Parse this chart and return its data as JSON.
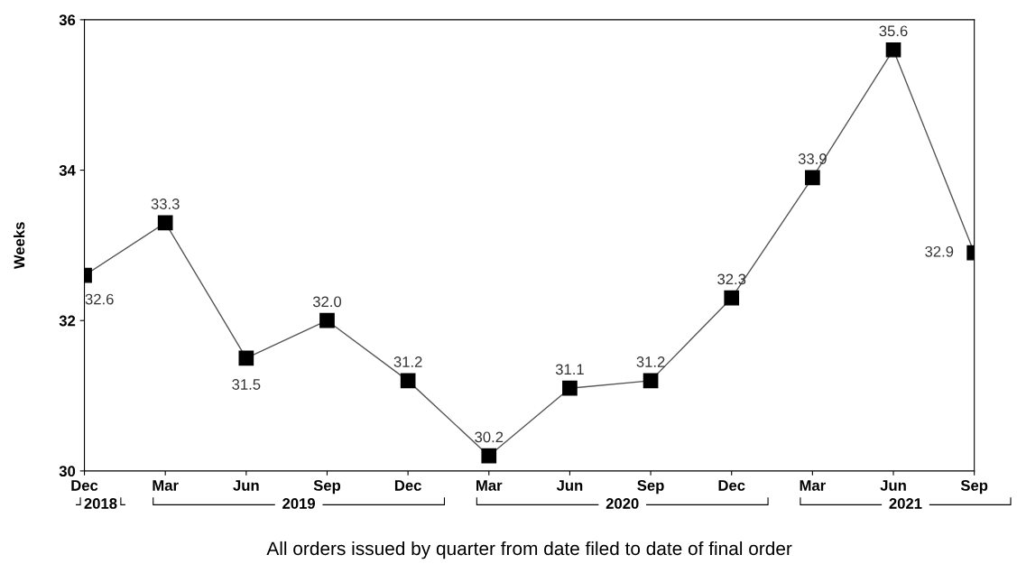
{
  "chart_data": {
    "type": "line",
    "categories": [
      "Dec",
      "Mar",
      "Jun",
      "Sep",
      "Dec",
      "Mar",
      "Jun",
      "Sep",
      "Dec",
      "Mar",
      "Jun",
      "Sep"
    ],
    "series": [
      {
        "color": "#000000",
        "values": [
          32.6,
          33.3,
          31.5,
          32.0,
          31.2,
          30.2,
          31.1,
          31.2,
          32.3,
          33.9,
          35.6,
          32.9
        ]
      }
    ],
    "ylabel": "Weeks",
    "xlabel": "All orders issued by quarter from date filed to date of final order",
    "ylim": [
      30,
      36
    ],
    "yticks": [
      30,
      32,
      34,
      36
    ],
    "annotations": [
      "2018",
      "2019",
      "2020",
      "2021"
    ],
    "value_labels": [
      "32.6",
      "33.3",
      "31.5",
      "32.0",
      "31.2",
      "30.2",
      "31.1",
      "31.2",
      "32.3",
      "33.9",
      "35.6",
      "32.9"
    ],
    "marker": "square",
    "line_style": "solid",
    "grid": false,
    "legend": false
  }
}
